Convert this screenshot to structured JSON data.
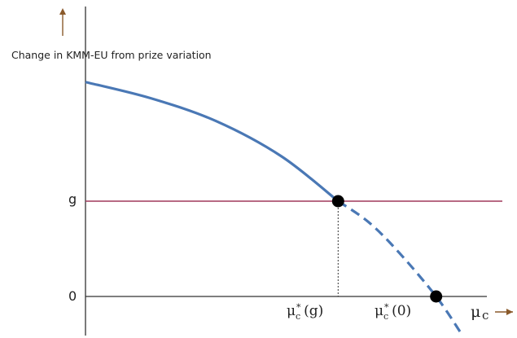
{
  "chart_data": {
    "type": "line",
    "ylabel": "Change in KMM-EU from prize variation",
    "xlabel_symbol": "μ",
    "xlabel_subscript": "c",
    "y_ticks": [
      {
        "label": "g",
        "value": 1
      },
      {
        "label": "0",
        "value": 0
      }
    ],
    "x_markers": [
      {
        "symbol": "μ",
        "subscript": "c",
        "superscript": "*",
        "arg": "(g)",
        "x": 0.58
      },
      {
        "symbol": "μ",
        "subscript": "c",
        "superscript": "*",
        "arg": "(0)",
        "x": 0.805
      }
    ],
    "series": [
      {
        "style": "solid",
        "color": "#4a78b5",
        "points": [
          [
            0,
            2.25
          ],
          [
            0.15,
            2.08
          ],
          [
            0.3,
            1.84
          ],
          [
            0.45,
            1.47
          ],
          [
            0.58,
            1.0
          ]
        ]
      },
      {
        "style": "dashed",
        "color": "#4a78b5",
        "points": [
          [
            0.58,
            1.0
          ],
          [
            0.65,
            0.78
          ],
          [
            0.72,
            0.46
          ],
          [
            0.805,
            0.0
          ],
          [
            0.86,
            -0.37
          ]
        ]
      }
    ],
    "hline": {
      "y": 1,
      "color": "#a0395c"
    },
    "points": [
      {
        "x": 0.58,
        "y": 1.0,
        "color": "#000000"
      },
      {
        "x": 0.805,
        "y": 0.0,
        "color": "#000000"
      }
    ],
    "xlim": [
      0,
      1.0
    ],
    "ylim": [
      -0.37,
      2.25
    ],
    "grid": false,
    "colors": {
      "curve": "#4a78b5",
      "hline": "#a0395c",
      "axis": "#333333"
    }
  }
}
